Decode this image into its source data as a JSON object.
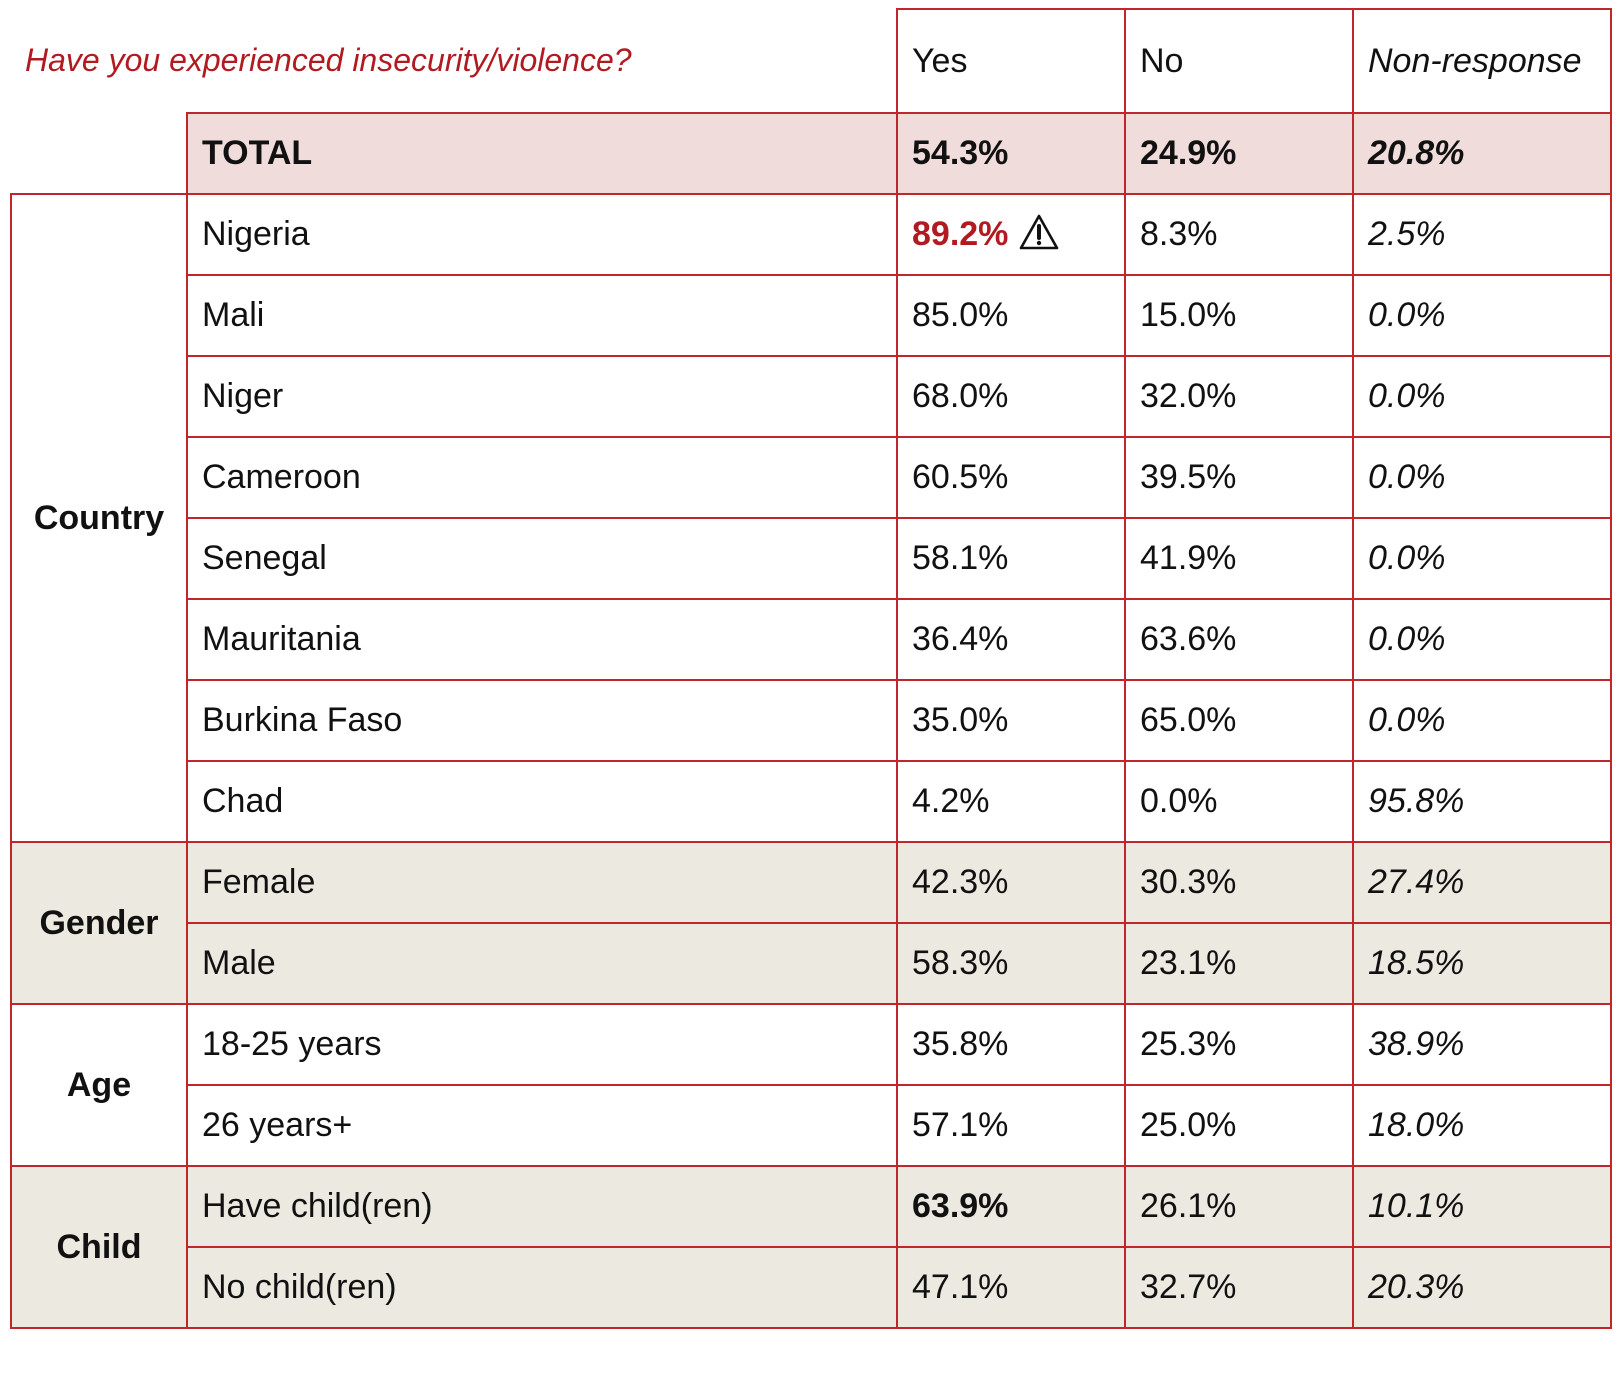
{
  "question": "Have you experienced insecurity/violence?",
  "columns": {
    "yes": "Yes",
    "no": "No",
    "non_response": "Non-response"
  },
  "total": {
    "label": "TOTAL",
    "yes": "54.3%",
    "no": "24.9%",
    "non_response": "20.8%"
  },
  "groups": [
    {
      "name": "Country",
      "rows": [
        {
          "label": "Nigeria",
          "yes": "89.2%",
          "no": "8.3%",
          "non_response": "2.5%",
          "yes_highlight": true,
          "warning_icon": "warning-triangle-icon"
        },
        {
          "label": "Mali",
          "yes": "85.0%",
          "no": "15.0%",
          "non_response": "0.0%"
        },
        {
          "label": "Niger",
          "yes": "68.0%",
          "no": "32.0%",
          "non_response": "0.0%"
        },
        {
          "label": "Cameroon",
          "yes": "60.5%",
          "no": "39.5%",
          "non_response": "0.0%"
        },
        {
          "label": "Senegal",
          "yes": "58.1%",
          "no": "41.9%",
          "non_response": "0.0%"
        },
        {
          "label": "Mauritania",
          "yes": "36.4%",
          "no": "63.6%",
          "non_response": "0.0%"
        },
        {
          "label": "Burkina Faso",
          "yes": "35.0%",
          "no": "65.0%",
          "non_response": "0.0%"
        },
        {
          "label": "Chad",
          "yes": "4.2%",
          "no": "0.0%",
          "non_response": "95.8%"
        }
      ]
    },
    {
      "name": "Gender",
      "rows": [
        {
          "label": "Female",
          "yes": "42.3%",
          "no": "30.3%",
          "non_response": "27.4%"
        },
        {
          "label": "Male",
          "yes": "58.3%",
          "no": "23.1%",
          "non_response": "18.5%"
        }
      ]
    },
    {
      "name": "Age",
      "rows": [
        {
          "label": "18-25 years",
          "yes": "35.8%",
          "no": "25.3%",
          "non_response": "38.9%"
        },
        {
          "label": "26 years+",
          "yes": "57.1%",
          "no": "25.0%",
          "non_response": "18.0%"
        }
      ]
    },
    {
      "name": "Child",
      "rows": [
        {
          "label": "Have child(ren)",
          "yes": "63.9%",
          "no": "26.1%",
          "non_response": "10.1%",
          "yes_bold": true
        },
        {
          "label": "No child(ren)",
          "yes": "47.1%",
          "no": "32.7%",
          "non_response": "20.3%"
        }
      ]
    }
  ],
  "colors": {
    "border": "#c0272d",
    "question_text": "#b01a20",
    "total_fill": "#f1dcdc",
    "shaded_group_fill": "#ece9e0",
    "highlight_text": "#b01a20"
  }
}
